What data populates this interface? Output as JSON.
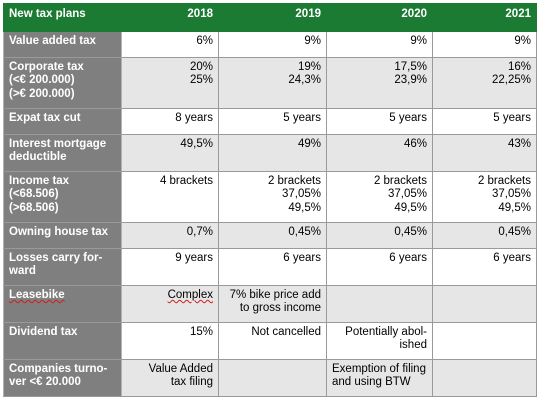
{
  "table": {
    "header": {
      "label": "New tax plans",
      "years": [
        "2018",
        "2019",
        "2020",
        "2021"
      ]
    },
    "rows": [
      {
        "label": [
          "Value added tax"
        ],
        "cells": [
          [
            "6%"
          ],
          [
            "9%"
          ],
          [
            "9%"
          ],
          [
            "9%"
          ]
        ]
      },
      {
        "label": [
          "Corporate tax",
          "(<€ 200.000)",
          "(>€ 200.000)"
        ],
        "cells": [
          [
            "20%",
            "25%"
          ],
          [
            "19%",
            "24,3%"
          ],
          [
            "17,5%",
            "23,9%"
          ],
          [
            "16%",
            "22,25%"
          ]
        ]
      },
      {
        "label": [
          "Expat tax cut"
        ],
        "cells": [
          [
            "8 years"
          ],
          [
            "5 years"
          ],
          [
            "5 years"
          ],
          [
            "5 years"
          ]
        ]
      },
      {
        "label": [
          "Interest mortgage",
          "deductible"
        ],
        "cells": [
          [
            "49,5%"
          ],
          [
            "49%"
          ],
          [
            "46%"
          ],
          [
            "43%"
          ]
        ]
      },
      {
        "label": [
          "Income tax",
          "(<68.506)",
          "(>68.506)"
        ],
        "cells": [
          [
            "4 brackets"
          ],
          [
            "2 brackets",
            "37,05%",
            "49,5%"
          ],
          [
            "2 brackets",
            "37,05%",
            "49,5%"
          ],
          [
            "2 brackets",
            "37,05%",
            "49,5%"
          ]
        ]
      },
      {
        "label": [
          "Owning house tax"
        ],
        "cells": [
          [
            "0,7%"
          ],
          [
            "0,45%"
          ],
          [
            "0,45%"
          ],
          [
            "0,45%"
          ]
        ]
      },
      {
        "label": [
          "Losses carry for-",
          "ward"
        ],
        "cells": [
          [
            "9 years"
          ],
          [
            "6 years"
          ],
          [
            "6 years"
          ],
          [
            "6 years"
          ]
        ]
      },
      {
        "label": [
          "Leasebike"
        ],
        "cells": [
          [
            "Complex"
          ],
          [
            "7% bike price add",
            "to gross income"
          ],
          [],
          []
        ]
      },
      {
        "label": [
          "Dividend tax"
        ],
        "cells": [
          [
            "15%"
          ],
          [
            "Not cancelled"
          ],
          [
            "Potentially abol-",
            "ished"
          ],
          []
        ]
      },
      {
        "label": [
          "Companies turno-",
          "ver <€ 20.000"
        ],
        "cells": [
          [
            "Value Added",
            "tax filing"
          ],
          [],
          [
            "Exemption of filing",
            "and using BTW"
          ],
          []
        ]
      }
    ]
  },
  "colors": {
    "header_bg": "#1b7b33",
    "label_bg": "#7f7f7f",
    "row_alt_bg": "#e6e6e6",
    "spellcheck_underline": "#d21c1c"
  }
}
